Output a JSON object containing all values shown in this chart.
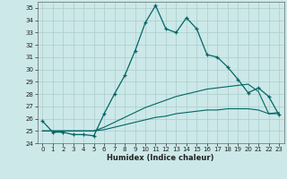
{
  "title": "",
  "xlabel": "Humidex (Indice chaleur)",
  "ylabel": "",
  "xlim": [
    -0.5,
    23.5
  ],
  "ylim": [
    24,
    35.5
  ],
  "yticks": [
    24,
    25,
    26,
    27,
    28,
    29,
    30,
    31,
    32,
    33,
    34,
    35
  ],
  "xticks": [
    0,
    1,
    2,
    3,
    4,
    5,
    6,
    7,
    8,
    9,
    10,
    11,
    12,
    13,
    14,
    15,
    16,
    17,
    18,
    19,
    20,
    21,
    22,
    23
  ],
  "bg_color": "#cce8e8",
  "grid_color": "#aacccc",
  "line_color": "#006666",
  "line1_x": [
    0,
    1,
    2,
    3,
    4,
    5,
    6,
    7,
    8,
    9,
    10,
    11,
    12,
    13,
    14,
    15,
    16,
    17,
    18,
    19,
    20,
    21,
    22,
    23
  ],
  "line1_y": [
    25.8,
    24.9,
    24.9,
    24.7,
    24.7,
    24.6,
    26.4,
    28.0,
    29.5,
    31.5,
    33.8,
    35.2,
    33.3,
    33.0,
    34.2,
    33.3,
    31.2,
    31.0,
    30.2,
    29.2,
    28.1,
    28.5,
    27.8,
    26.3
  ],
  "line2_x": [
    0,
    1,
    2,
    3,
    4,
    5,
    6,
    7,
    8,
    9,
    10,
    11,
    12,
    13,
    14,
    15,
    16,
    17,
    18,
    19,
    20,
    21,
    22,
    23
  ],
  "line2_y": [
    25.0,
    25.0,
    25.0,
    25.0,
    25.0,
    25.0,
    25.3,
    25.7,
    26.1,
    26.5,
    26.9,
    27.2,
    27.5,
    27.8,
    28.0,
    28.2,
    28.4,
    28.5,
    28.6,
    28.7,
    28.8,
    28.2,
    26.4,
    26.5
  ],
  "line3_x": [
    0,
    1,
    2,
    3,
    4,
    5,
    6,
    7,
    8,
    9,
    10,
    11,
    12,
    13,
    14,
    15,
    16,
    17,
    18,
    19,
    20,
    21,
    22,
    23
  ],
  "line3_y": [
    25.0,
    25.0,
    25.0,
    25.0,
    25.0,
    25.0,
    25.1,
    25.3,
    25.5,
    25.7,
    25.9,
    26.1,
    26.2,
    26.4,
    26.5,
    26.6,
    26.7,
    26.7,
    26.8,
    26.8,
    26.8,
    26.7,
    26.4,
    26.4
  ]
}
